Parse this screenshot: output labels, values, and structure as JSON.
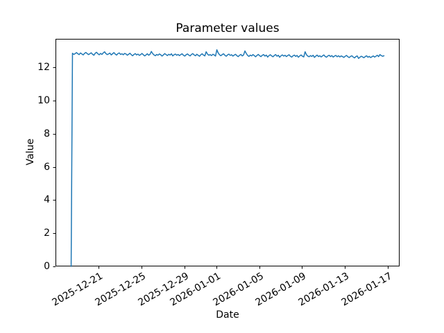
{
  "chart_data": {
    "type": "line",
    "title": "Parameter values",
    "xlabel": "Date",
    "ylabel": "Value",
    "line_color": "#1f77b4",
    "axes_bg": "#ffffff",
    "spine_color": "#000000",
    "grid": false,
    "legend": null,
    "x_start_date": "2025-12-18 10:00",
    "x_step_days": 0.125,
    "xlim_days": [
      -1.4625,
      30.7125
    ],
    "ylim": [
      0,
      13.73
    ],
    "y_ticks": [
      0,
      2,
      4,
      6,
      8,
      10,
      12
    ],
    "x_ticks": [
      {
        "label": "2025-12-21",
        "day": 2.583
      },
      {
        "label": "2025-12-25",
        "day": 6.583
      },
      {
        "label": "2025-12-29",
        "day": 10.583
      },
      {
        "label": "2026-01-01",
        "day": 13.583
      },
      {
        "label": "2026-01-05",
        "day": 17.583
      },
      {
        "label": "2026-01-09",
        "day": 21.583
      },
      {
        "label": "2026-01-13",
        "day": 25.583
      },
      {
        "label": "2026-01-17",
        "day": 29.583
      }
    ],
    "values": [
      0.0,
      12.86,
      12.79,
      12.84,
      12.9,
      12.83,
      12.78,
      12.88,
      12.82,
      12.76,
      12.85,
      12.91,
      12.84,
      12.78,
      12.83,
      12.89,
      12.8,
      12.74,
      12.86,
      12.92,
      12.83,
      12.77,
      12.85,
      12.79,
      12.88,
      12.95,
      12.84,
      12.78,
      12.82,
      12.87,
      12.76,
      12.83,
      12.9,
      12.81,
      12.75,
      12.84,
      12.88,
      12.79,
      12.83,
      12.77,
      12.85,
      12.82,
      12.74,
      12.8,
      12.86,
      12.77,
      12.71,
      12.79,
      12.84,
      12.76,
      12.81,
      12.73,
      12.78,
      12.85,
      12.77,
      12.7,
      12.76,
      12.83,
      12.74,
      12.8,
      12.97,
      12.84,
      12.76,
      12.71,
      12.79,
      12.74,
      12.82,
      12.77,
      12.69,
      12.76,
      12.84,
      12.78,
      12.72,
      12.8,
      12.75,
      12.83,
      12.7,
      12.77,
      12.81,
      12.74,
      12.79,
      12.72,
      12.78,
      12.83,
      12.74,
      12.69,
      12.77,
      12.82,
      12.75,
      12.7,
      12.79,
      12.84,
      12.76,
      12.71,
      12.8,
      12.74,
      12.68,
      12.77,
      12.83,
      12.75,
      12.7,
      12.95,
      12.81,
      12.74,
      12.78,
      12.72,
      12.8,
      12.76,
      12.69,
      13.07,
      12.88,
      12.77,
      12.71,
      12.78,
      12.83,
      12.74,
      12.68,
      12.76,
      12.81,
      12.73,
      12.77,
      12.69,
      12.75,
      12.8,
      12.71,
      12.66,
      12.74,
      12.79,
      12.7,
      12.76,
      13.0,
      12.85,
      12.73,
      12.67,
      12.75,
      12.7,
      12.78,
      12.72,
      12.65,
      12.73,
      12.79,
      12.71,
      12.66,
      12.74,
      12.78,
      12.69,
      12.75,
      12.63,
      12.72,
      12.77,
      12.7,
      12.65,
      12.73,
      12.78,
      12.68,
      12.74,
      12.62,
      12.71,
      12.76,
      12.69,
      12.74,
      12.66,
      12.72,
      12.77,
      12.68,
      12.63,
      12.71,
      12.75,
      12.67,
      12.73,
      12.62,
      12.7,
      12.76,
      12.68,
      12.64,
      12.95,
      12.78,
      12.69,
      12.65,
      12.72,
      12.67,
      12.74,
      12.61,
      12.69,
      12.75,
      12.66,
      12.71,
      12.64,
      12.7,
      12.76,
      12.67,
      12.62,
      12.7,
      12.74,
      12.66,
      12.72,
      12.63,
      12.69,
      12.73,
      12.65,
      12.71,
      12.64,
      12.7,
      12.66,
      12.61,
      12.68,
      12.73,
      12.65,
      12.6,
      12.67,
      12.71,
      12.63,
      12.58,
      12.66,
      12.7,
      12.55,
      12.62,
      12.68,
      12.64,
      12.59,
      12.66,
      12.71,
      12.62,
      12.67,
      12.6,
      12.65,
      12.7,
      12.63,
      12.68,
      12.74,
      12.66,
      12.78,
      12.72,
      12.68,
      12.71
    ]
  }
}
